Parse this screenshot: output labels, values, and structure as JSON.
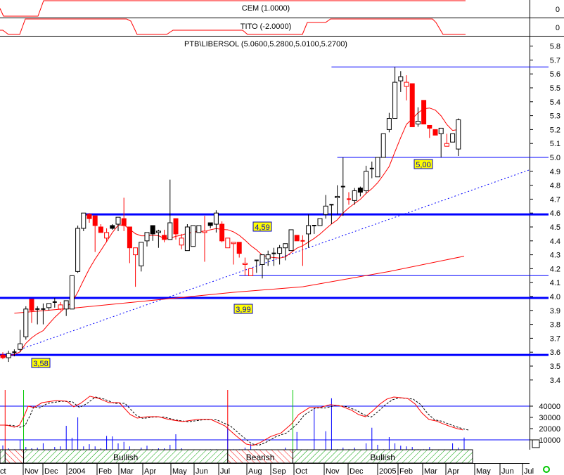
{
  "indicators": {
    "cem": {
      "label": "CEM (1.0000)",
      "axis_label": "0"
    },
    "tito": {
      "label": "TITO (-2.0000)",
      "axis_label": "0"
    }
  },
  "chart_data": {
    "type": "candlestick",
    "title": "PTB\\LIBERSOL (5.0600,5.2800,5.0100,5.2700)",
    "period": "weekly",
    "ylim": [
      3.3,
      5.85
    ],
    "y_ticks": [
      "5.8",
      "5.7",
      "5.6",
      "5.5",
      "5.4",
      "5.3",
      "5.2",
      "5.1",
      "5.0",
      "4.9",
      "4.8",
      "4.7",
      "4.6",
      "4.5",
      "4.4",
      "4.3",
      "4.2",
      "4.1",
      "4.0",
      "3.9",
      "3.8",
      "3.7",
      "3.6",
      "3.5",
      "3.4"
    ],
    "x_ticks": [
      "ct",
      "Nov",
      "Dec",
      "2004",
      "Feb",
      "Mar",
      "Apr",
      "May",
      "Jun",
      "Jul",
      "Aug",
      "Sep",
      "Oct",
      "Nov",
      "Dec",
      "2005",
      "Feb",
      "Mar",
      "Apr",
      "May",
      "Jun",
      "Jul"
    ],
    "candle_fields": [
      "open",
      "high",
      "low",
      "close",
      "color",
      "filled"
    ],
    "candles": [
      [
        3.58,
        3.6,
        3.55,
        3.56,
        "r",
        1
      ],
      [
        3.56,
        3.61,
        3.53,
        3.59,
        "k",
        0
      ],
      [
        3.6,
        3.62,
        3.57,
        3.6,
        "k",
        0
      ],
      [
        3.62,
        3.76,
        3.6,
        3.66,
        "k",
        0
      ],
      [
        3.71,
        3.93,
        3.69,
        3.91,
        "k",
        0
      ],
      [
        3.98,
        3.98,
        3.81,
        3.9,
        "r",
        1
      ],
      [
        3.91,
        3.93,
        3.8,
        3.91,
        "k",
        0
      ],
      [
        3.91,
        3.95,
        3.8,
        3.91,
        "k",
        0
      ],
      [
        3.92,
        3.95,
        3.9,
        3.95,
        "k",
        0
      ],
      [
        3.96,
        3.99,
        3.92,
        3.96,
        "k",
        0
      ],
      [
        3.94,
        3.96,
        3.9,
        3.91,
        "r",
        0
      ],
      [
        3.91,
        3.97,
        3.86,
        3.97,
        "k",
        0
      ],
      [
        3.91,
        4.15,
        3.91,
        4.15,
        "k",
        0
      ],
      [
        4.18,
        4.51,
        4.17,
        4.49,
        "k",
        0
      ],
      [
        4.49,
        4.6,
        4.47,
        4.6,
        "k",
        0
      ],
      [
        4.59,
        4.6,
        4.53,
        4.56,
        "r",
        1
      ],
      [
        4.58,
        4.58,
        4.32,
        4.51,
        "r",
        1
      ],
      [
        4.5,
        4.52,
        4.46,
        4.46,
        "r",
        1
      ],
      [
        4.46,
        4.49,
        4.39,
        4.42,
        "r",
        0
      ],
      [
        4.51,
        4.52,
        4.48,
        4.49,
        "k",
        1
      ],
      [
        4.52,
        4.57,
        4.47,
        4.57,
        "k",
        0
      ],
      [
        4.56,
        4.71,
        4.47,
        4.51,
        "r",
        1
      ],
      [
        4.5,
        4.5,
        4.24,
        4.35,
        "r",
        1
      ],
      [
        4.35,
        4.35,
        4.07,
        4.3,
        "r",
        0
      ],
      [
        4.22,
        4.39,
        4.18,
        4.39,
        "k",
        0
      ],
      [
        4.4,
        4.46,
        4.36,
        4.46,
        "k",
        0
      ],
      [
        4.51,
        4.51,
        4.4,
        4.45,
        "k",
        1
      ],
      [
        4.46,
        4.48,
        4.35,
        4.47,
        "k",
        0
      ],
      [
        4.44,
        4.48,
        4.39,
        4.41,
        "r",
        1
      ],
      [
        4.41,
        4.84,
        4.41,
        4.53,
        "k",
        0
      ],
      [
        4.56,
        4.56,
        4.41,
        4.45,
        "r",
        1
      ],
      [
        4.42,
        4.45,
        4.34,
        4.37,
        "r",
        0
      ],
      [
        4.33,
        4.52,
        4.33,
        4.5,
        "k",
        0
      ],
      [
        4.36,
        4.51,
        4.36,
        4.51,
        "k",
        0
      ],
      [
        4.46,
        4.51,
        4.46,
        4.51,
        "k",
        0
      ],
      [
        4.47,
        4.58,
        4.25,
        4.46,
        "r",
        0
      ],
      [
        4.53,
        4.53,
        4.49,
        4.51,
        "k",
        1
      ],
      [
        4.52,
        4.62,
        4.46,
        4.6,
        "k",
        0
      ],
      [
        4.52,
        4.54,
        4.39,
        4.4,
        "r",
        1
      ],
      [
        4.42,
        4.42,
        4.35,
        4.35,
        "r",
        0
      ],
      [
        4.39,
        4.39,
        4.23,
        4.38,
        "r",
        0
      ],
      [
        4.39,
        4.39,
        4.28,
        4.31,
        "r",
        1
      ],
      [
        4.24,
        4.28,
        4.15,
        4.23,
        "r",
        0
      ],
      [
        4.2,
        4.2,
        4.15,
        4.15,
        "r",
        0
      ],
      [
        4.26,
        4.26,
        4.17,
        4.26,
        "k",
        0
      ],
      [
        4.23,
        4.3,
        4.13,
        4.3,
        "k",
        0
      ],
      [
        4.27,
        4.33,
        4.22,
        4.3,
        "k",
        0
      ],
      [
        4.31,
        4.35,
        4.22,
        4.31,
        "k",
        0
      ],
      [
        4.31,
        4.37,
        4.23,
        4.35,
        "k",
        0
      ],
      [
        4.35,
        4.38,
        4.26,
        4.38,
        "k",
        0
      ],
      [
        4.33,
        4.48,
        4.33,
        4.48,
        "k",
        0
      ],
      [
        4.44,
        4.44,
        4.4,
        4.4,
        "r",
        1
      ],
      [
        4.4,
        4.44,
        4.22,
        4.4,
        "r",
        0
      ],
      [
        4.45,
        4.59,
        4.35,
        4.51,
        "k",
        0
      ],
      [
        4.51,
        4.51,
        4.45,
        4.51,
        "k",
        0
      ],
      [
        4.51,
        4.56,
        4.51,
        4.56,
        "k",
        0
      ],
      [
        4.59,
        4.73,
        4.56,
        4.65,
        "k",
        0
      ],
      [
        4.66,
        4.66,
        4.52,
        4.66,
        "k",
        1
      ],
      [
        4.71,
        4.8,
        4.59,
        4.72,
        "k",
        0
      ],
      [
        4.79,
        5.0,
        4.58,
        4.79,
        "k",
        0
      ],
      [
        4.7,
        4.75,
        4.66,
        4.7,
        "r",
        0
      ],
      [
        4.69,
        4.78,
        4.66,
        4.76,
        "k",
        0
      ],
      [
        4.78,
        4.79,
        4.72,
        4.75,
        "k",
        1
      ],
      [
        4.76,
        4.94,
        4.74,
        4.9,
        "k",
        0
      ],
      [
        4.92,
        4.97,
        4.85,
        4.92,
        "k",
        0
      ],
      [
        4.86,
        5.0,
        4.86,
        5.0,
        "k",
        0
      ],
      [
        5.0,
        5.17,
        5.0,
        5.17,
        "k",
        0
      ],
      [
        5.2,
        5.32,
        5.18,
        5.28,
        "k",
        0
      ],
      [
        5.28,
        5.65,
        5.28,
        5.54,
        "k",
        0
      ],
      [
        5.55,
        5.62,
        5.47,
        5.58,
        "k",
        0
      ],
      [
        5.54,
        5.59,
        5.41,
        5.51,
        "r",
        0
      ],
      [
        5.53,
        5.53,
        5.22,
        5.22,
        "r",
        1
      ],
      [
        5.24,
        5.36,
        5.22,
        5.26,
        "k",
        0
      ],
      [
        5.41,
        5.41,
        5.24,
        5.24,
        "r",
        1
      ],
      [
        5.23,
        5.23,
        5.14,
        5.21,
        "r",
        1
      ],
      [
        5.2,
        5.2,
        5.16,
        5.16,
        "r",
        1
      ],
      [
        5.17,
        5.21,
        5.0,
        5.21,
        "k",
        0
      ],
      [
        5.1,
        5.17,
        5.08,
        5.08,
        "r",
        0
      ],
      [
        5.11,
        5.17,
        5.11,
        5.17,
        "k",
        0
      ],
      [
        5.06,
        5.28,
        5.01,
        5.27,
        "k",
        0
      ]
    ],
    "long_ma": [
      [
        2,
        3.88
      ],
      [
        13,
        3.92
      ],
      [
        40,
        4.03
      ],
      [
        52,
        4.07
      ],
      [
        67,
        4.18
      ],
      [
        80,
        4.29
      ]
    ],
    "trendline": [
      [
        3,
        3.62
      ],
      [
        91.3,
        4.91
      ]
    ],
    "levels": [
      {
        "price": 4.59,
        "label": "4,59",
        "style": "thick",
        "from": 14
      },
      {
        "price": 3.99,
        "label": "3,99",
        "style": "thick",
        "from": -1
      },
      {
        "price": 3.58,
        "label": "3,58",
        "style": "thick",
        "from": -1
      },
      {
        "price": 5.0,
        "label": "5,00",
        "style": "thin",
        "from": 58
      },
      {
        "price": 5.65,
        "label": "",
        "style": "thin",
        "from": 57
      },
      {
        "price": 4.15,
        "label": "",
        "style": "thin",
        "from": 41
      }
    ],
    "volume_ticks": [
      "40000",
      "30000",
      "20000",
      "10000"
    ],
    "volume_guides": [
      40000,
      10000
    ],
    "volume": [
      5000,
      2500,
      1700,
      10000,
      3700,
      2500,
      3000,
      7000,
      500,
      3700,
      4200,
      22500,
      11900,
      30000,
      4200,
      6200,
      4200,
      2500,
      13500,
      13100,
      6900,
      8300,
      4200,
      1000,
      3100,
      4800,
      1700,
      2500,
      2500,
      5600,
      15000,
      2500,
      0,
      0,
      0,
      0,
      1700,
      1700,
      1000,
      21000,
      1700,
      1700,
      3100,
      6200,
      1700,
      1000,
      0,
      0,
      0,
      3100,
      0,
      17000,
      0,
      0,
      38000,
      0,
      17700,
      47000,
      1700,
      3100,
      1700,
      3100,
      0,
      6900,
      20800,
      5600,
      1700,
      12500,
      6900,
      4800,
      4200,
      3700,
      1700,
      1700,
      3700,
      0,
      0,
      1000,
      6900,
      3100,
      12000
    ],
    "oscillator": [
      [
        -0.5,
        23100
      ],
      [
        0.7,
        23100
      ],
      [
        2,
        21300
      ],
      [
        2.9,
        23100
      ],
      [
        3.8,
        32500
      ],
      [
        4.4,
        40000
      ],
      [
        5.4,
        38800
      ],
      [
        6.8,
        43100
      ],
      [
        9.3,
        45000
      ],
      [
        11.1,
        44400
      ],
      [
        12.3,
        39400
      ],
      [
        13.5,
        42500
      ],
      [
        15.1,
        48800
      ],
      [
        16.6,
        46900
      ],
      [
        18.4,
        43100
      ],
      [
        20.2,
        43100
      ],
      [
        22.1,
        32500
      ],
      [
        23.3,
        29400
      ],
      [
        25.1,
        30600
      ],
      [
        27,
        30600
      ],
      [
        28.8,
        28100
      ],
      [
        31.2,
        26300
      ],
      [
        33.7,
        28100
      ],
      [
        36.1,
        28100
      ],
      [
        38.5,
        22500
      ],
      [
        40.4,
        13800
      ],
      [
        42.2,
        6300
      ],
      [
        43.4,
        5000
      ],
      [
        44.6,
        7500
      ],
      [
        46.5,
        13100
      ],
      [
        48.3,
        16300
      ],
      [
        50.1,
        24400
      ],
      [
        51.3,
        32500
      ],
      [
        53.2,
        38800
      ],
      [
        55,
        38800
      ],
      [
        56.8,
        41300
      ],
      [
        58.7,
        40000
      ],
      [
        60.5,
        36300
      ],
      [
        61.7,
        32500
      ],
      [
        62.9,
        30600
      ],
      [
        64.1,
        35600
      ],
      [
        65.4,
        41900
      ],
      [
        66.6,
        46300
      ],
      [
        67.8,
        48100
      ],
      [
        69,
        47500
      ],
      [
        70.2,
        46900
      ],
      [
        71.5,
        41900
      ],
      [
        72.7,
        33800
      ],
      [
        73.9,
        28100
      ],
      [
        75.1,
        26900
      ],
      [
        76.3,
        24400
      ],
      [
        77.6,
        21900
      ],
      [
        78.8,
        20000
      ],
      [
        79.8,
        18800
      ]
    ],
    "signals": [
      {
        "index": 0.4,
        "type": "sell"
      },
      {
        "index": 3.6,
        "type": "buy"
      },
      {
        "index": 39,
        "type": "sell"
      },
      {
        "index": 50.3,
        "type": "buy"
      }
    ],
    "trend_bands": [
      {
        "from": -0.6,
        "to": 0.4,
        "state": "bull",
        "label": ""
      },
      {
        "from": 0.4,
        "to": 3.6,
        "state": "bear",
        "label": ""
      },
      {
        "from": 3.6,
        "to": 39,
        "state": "bull",
        "label": "Bullish"
      },
      {
        "from": 39,
        "to": 50.3,
        "state": "bear",
        "label": "Bearish"
      },
      {
        "from": 50.3,
        "to": 81.5,
        "state": "bull",
        "label": "Bullish"
      }
    ]
  },
  "colors": {
    "up": "#000000",
    "down": "#ff0000",
    "level": "#0000ff",
    "ma": "#ff0000",
    "bull": "#00a000",
    "bear": "#ff0000"
  }
}
